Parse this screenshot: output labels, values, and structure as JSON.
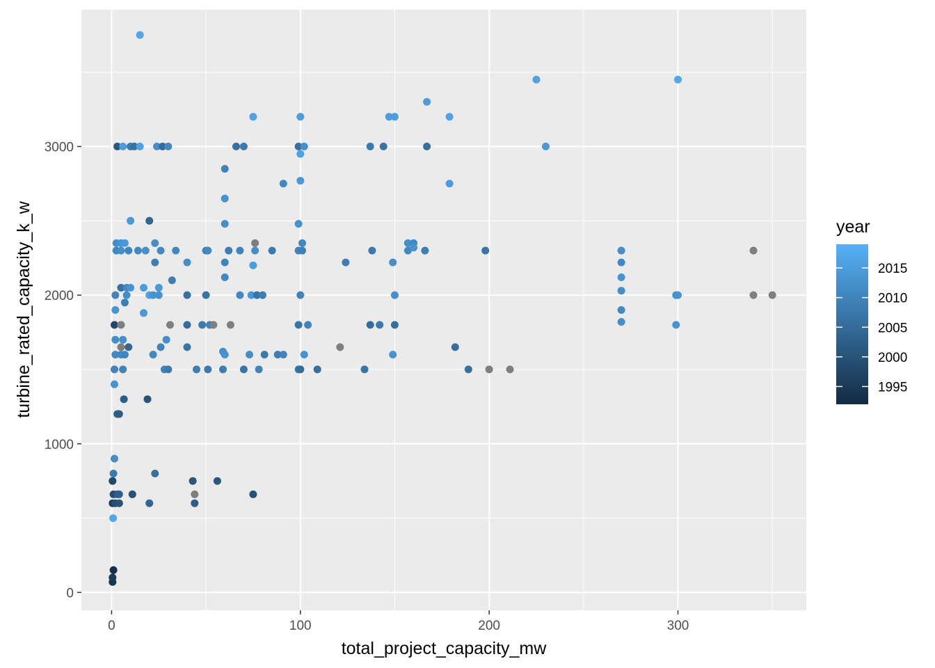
{
  "chart_data": {
    "type": "scatter",
    "xlabel": "total_project_capacity_mw",
    "ylabel": "turbine_rated_capacity_k_w",
    "xlim": [
      -16,
      368
    ],
    "ylim": [
      -120,
      3920
    ],
    "x_ticks": [
      0,
      100,
      200,
      300
    ],
    "y_ticks": [
      0,
      1000,
      2000,
      3000
    ],
    "x_tick_labels": [
      "0",
      "100",
      "200",
      "300"
    ],
    "y_tick_labels": [
      "0",
      "1000",
      "2000",
      "3000"
    ],
    "grid": true,
    "legend": {
      "title": "year",
      "position": "right",
      "type": "colorbar",
      "range": [
        1992,
        2019
      ],
      "breaks": [
        1995,
        2000,
        2005,
        2010,
        2015
      ],
      "break_labels": [
        "1995",
        "2000",
        "2005",
        "2010",
        "2015"
      ],
      "low_color": "#132B43",
      "high_color": "#56B1F7",
      "na_color": "#7F7F7F"
    },
    "colors": {
      "panel_background": "#EBEBEB",
      "grid": "#FFFFFF",
      "na_points": "#7F7F7F"
    },
    "points": [
      {
        "x": 0.5,
        "y": 70,
        "year": 1994
      },
      {
        "x": 0.5,
        "y": 100,
        "year": 1995
      },
      {
        "x": 1,
        "y": 150,
        "year": 1993
      },
      {
        "x": 0.8,
        "y": 500,
        "year": 2017
      },
      {
        "x": 0.5,
        "y": 600,
        "year": 1996
      },
      {
        "x": 1,
        "y": 660,
        "year": 1999
      },
      {
        "x": 0.5,
        "y": 750,
        "year": 1998
      },
      {
        "x": 1,
        "y": 800,
        "year": 2008
      },
      {
        "x": 1.5,
        "y": 900,
        "year": 2012
      },
      {
        "x": 2,
        "y": 600,
        "year": 1999
      },
      {
        "x": 3,
        "y": 660,
        "year": 2001
      },
      {
        "x": 1.5,
        "y": 1400,
        "year": 2013
      },
      {
        "x": 1.5,
        "y": 1500,
        "year": 2010
      },
      {
        "x": 2,
        "y": 1600,
        "year": 2011
      },
      {
        "x": 2,
        "y": 1700,
        "year": 2012
      },
      {
        "x": 1.5,
        "y": 1800,
        "year": 1998
      },
      {
        "x": 2,
        "y": 1900,
        "year": 2013
      },
      {
        "x": 2,
        "y": 2000,
        "year": 2010
      },
      {
        "x": 2.5,
        "y": 2300,
        "year": 2011
      },
      {
        "x": 2.5,
        "y": 2350,
        "year": 2012
      },
      {
        "x": 3,
        "y": 1200,
        "year": 2003
      },
      {
        "x": 4,
        "y": 1200,
        "year": 2002
      },
      {
        "x": 4,
        "y": 600,
        "year": 2000
      },
      {
        "x": 4,
        "y": 660,
        "year": 2003
      },
      {
        "x": 3,
        "y": 3000,
        "year": 2001
      },
      {
        "x": 5,
        "y": 2050,
        "year": 2006
      },
      {
        "x": 5,
        "y": 1650,
        "year": null
      },
      {
        "x": 5,
        "y": 1800,
        "year": null
      },
      {
        "x": 5,
        "y": 2300,
        "year": 2012
      },
      {
        "x": 5,
        "y": 2350,
        "year": 2013
      },
      {
        "x": 5,
        "y": 1600,
        "year": 2011
      },
      {
        "x": 6,
        "y": 1500,
        "year": 2010
      },
      {
        "x": 6,
        "y": 1700,
        "year": 2012
      },
      {
        "x": 6.5,
        "y": 1300,
        "year": 2002
      },
      {
        "x": 6,
        "y": 3000,
        "year": 2015
      },
      {
        "x": 7,
        "y": 2350,
        "year": 2014
      },
      {
        "x": 7,
        "y": 1600,
        "year": 2010
      },
      {
        "x": 7,
        "y": 1950,
        "year": 2009
      },
      {
        "x": 8,
        "y": 2000,
        "year": 2012
      },
      {
        "x": 8,
        "y": 2050,
        "year": 2011
      },
      {
        "x": 9,
        "y": 1650,
        "year": 2004
      },
      {
        "x": 9,
        "y": 2300,
        "year": 2010
      },
      {
        "x": 10,
        "y": 3000,
        "year": 2008
      },
      {
        "x": 10,
        "y": 2500,
        "year": 2014
      },
      {
        "x": 10,
        "y": 2050,
        "year": 2013
      },
      {
        "x": 11,
        "y": 660,
        "year": null
      },
      {
        "x": 11,
        "y": 660,
        "year": 2000
      },
      {
        "x": 12,
        "y": 3000,
        "year": 2006
      },
      {
        "x": 14,
        "y": 2300,
        "year": 2011
      },
      {
        "x": 15,
        "y": 3000,
        "year": 2016
      },
      {
        "x": 15,
        "y": 3750,
        "year": 2017
      },
      {
        "x": 17,
        "y": 2050,
        "year": 2015
      },
      {
        "x": 17,
        "y": 1880,
        "year": 2014
      },
      {
        "x": 18,
        "y": 2300,
        "year": 2012
      },
      {
        "x": 19,
        "y": 1300,
        "year": 2000
      },
      {
        "x": 20,
        "y": 2500,
        "year": 2004
      },
      {
        "x": 20,
        "y": 600,
        "year": 2004
      },
      {
        "x": 20,
        "y": 2000,
        "year": 2016
      },
      {
        "x": 22,
        "y": 2000,
        "year": 2013
      },
      {
        "x": 22,
        "y": 1600,
        "year": 2011
      },
      {
        "x": 23,
        "y": 2220,
        "year": 2009
      },
      {
        "x": 23,
        "y": 2350,
        "year": 2012
      },
      {
        "x": 23,
        "y": 800,
        "year": 2006
      },
      {
        "x": 24,
        "y": 3000,
        "year": 2012
      },
      {
        "x": 25,
        "y": 2000,
        "year": 2013
      },
      {
        "x": 25,
        "y": 2050,
        "year": 2014
      },
      {
        "x": 26,
        "y": 2300,
        "year": 2011
      },
      {
        "x": 26,
        "y": 1650,
        "year": 2010
      },
      {
        "x": 27,
        "y": 3000,
        "year": 2005
      },
      {
        "x": 28,
        "y": 1500,
        "year": 2010
      },
      {
        "x": 29,
        "y": 1700,
        "year": 2012
      },
      {
        "x": 30,
        "y": 1500,
        "year": 2008
      },
      {
        "x": 30,
        "y": 3000,
        "year": 2011
      },
      {
        "x": 31,
        "y": 1800,
        "year": null
      },
      {
        "x": 32,
        "y": 2100,
        "year": 2009
      },
      {
        "x": 34,
        "y": 2300,
        "year": 2011
      },
      {
        "x": 40,
        "y": 2220,
        "year": 2012
      },
      {
        "x": 40,
        "y": 1800,
        "year": 2005
      },
      {
        "x": 40,
        "y": 2000,
        "year": 2006
      },
      {
        "x": 40,
        "y": 1650,
        "year": 2007
      },
      {
        "x": 43,
        "y": 750,
        "year": 2001
      },
      {
        "x": 44,
        "y": 660,
        "year": null
      },
      {
        "x": 44,
        "y": 600,
        "year": 2002
      },
      {
        "x": 45,
        "y": 1500,
        "year": 2009
      },
      {
        "x": 48,
        "y": 1800,
        "year": 2008
      },
      {
        "x": 50,
        "y": 2000,
        "year": 2007
      },
      {
        "x": 50,
        "y": 2300,
        "year": 2009
      },
      {
        "x": 51,
        "y": 2300,
        "year": 2011
      },
      {
        "x": 51,
        "y": 1500,
        "year": 2008
      },
      {
        "x": 52,
        "y": 1800,
        "year": 2010
      },
      {
        "x": 54,
        "y": 1800,
        "year": null
      },
      {
        "x": 56,
        "y": 750,
        "year": 2001
      },
      {
        "x": 59,
        "y": 1620,
        "year": 2012
      },
      {
        "x": 59,
        "y": 1500,
        "year": 2009
      },
      {
        "x": 60,
        "y": 2850,
        "year": 2010
      },
      {
        "x": 60,
        "y": 2650,
        "year": 2013
      },
      {
        "x": 60,
        "y": 2480,
        "year": 2012
      },
      {
        "x": 60,
        "y": 2220,
        "year": 2010
      },
      {
        "x": 60,
        "y": 2120,
        "year": 2011
      },
      {
        "x": 60,
        "y": 1600,
        "year": 2013
      },
      {
        "x": 62,
        "y": 2300,
        "year": 2009
      },
      {
        "x": 63,
        "y": 1800,
        "year": null
      },
      {
        "x": 66,
        "y": 3000,
        "year": 2006
      },
      {
        "x": 68,
        "y": 2300,
        "year": 2010
      },
      {
        "x": 68,
        "y": 2000,
        "year": 2011
      },
      {
        "x": 70,
        "y": 3000,
        "year": 2008
      },
      {
        "x": 70,
        "y": 1500,
        "year": 2007
      },
      {
        "x": 73,
        "y": 1600,
        "year": 2012
      },
      {
        "x": 74,
        "y": 2000,
        "year": 2014
      },
      {
        "x": 75,
        "y": 2200,
        "year": 2015
      },
      {
        "x": 75,
        "y": 3200,
        "year": 2016
      },
      {
        "x": 75,
        "y": 660,
        "year": 2000
      },
      {
        "x": 76,
        "y": 2350,
        "year": null
      },
      {
        "x": 76,
        "y": 2300,
        "year": 2012
      },
      {
        "x": 77,
        "y": 2000,
        "year": 2007
      },
      {
        "x": 78,
        "y": 1500,
        "year": 2010
      },
      {
        "x": 80,
        "y": 2000,
        "year": 2009
      },
      {
        "x": 81,
        "y": 1600,
        "year": 2008
      },
      {
        "x": 85,
        "y": 2300,
        "year": 2008
      },
      {
        "x": 88,
        "y": 1600,
        "year": 2009
      },
      {
        "x": 91,
        "y": 1600,
        "year": 2010
      },
      {
        "x": 91,
        "y": 2750,
        "year": 2011
      },
      {
        "x": 99,
        "y": 3000,
        "year": 2006
      },
      {
        "x": 99,
        "y": 2300,
        "year": 2010
      },
      {
        "x": 99,
        "y": 2480,
        "year": 2013
      },
      {
        "x": 99,
        "y": 1800,
        "year": 2007
      },
      {
        "x": 99,
        "y": 1500,
        "year": 2008
      },
      {
        "x": 100,
        "y": 3200,
        "year": 2015
      },
      {
        "x": 100,
        "y": 2950,
        "year": 2016
      },
      {
        "x": 100,
        "y": 2770,
        "year": 2014
      },
      {
        "x": 100,
        "y": 2000,
        "year": 2010
      },
      {
        "x": 100,
        "y": 1500,
        "year": 2005
      },
      {
        "x": 101,
        "y": 2350,
        "year": 2011
      },
      {
        "x": 101,
        "y": 2300,
        "year": 2009
      },
      {
        "x": 102,
        "y": 3000,
        "year": 2012
      },
      {
        "x": 102,
        "y": 1600,
        "year": 2013
      },
      {
        "x": 104,
        "y": 1800,
        "year": 2010
      },
      {
        "x": 109,
        "y": 1500,
        "year": 2006
      },
      {
        "x": 121,
        "y": 1650,
        "year": null
      },
      {
        "x": 124,
        "y": 2220,
        "year": 2009
      },
      {
        "x": 134,
        "y": 1500,
        "year": 2007
      },
      {
        "x": 137,
        "y": 1800,
        "year": 2005
      },
      {
        "x": 137,
        "y": 3000,
        "year": 2008
      },
      {
        "x": 138,
        "y": 2300,
        "year": 2008
      },
      {
        "x": 142,
        "y": 1800,
        "year": 2008
      },
      {
        "x": 144,
        "y": 3000,
        "year": 2007
      },
      {
        "x": 147,
        "y": 3200,
        "year": 2015
      },
      {
        "x": 149,
        "y": 1600,
        "year": 2013
      },
      {
        "x": 149,
        "y": 2220,
        "year": 2012
      },
      {
        "x": 150,
        "y": 1800,
        "year": 2006
      },
      {
        "x": 150,
        "y": 2000,
        "year": 2012
      },
      {
        "x": 150,
        "y": 3200,
        "year": 2015
      },
      {
        "x": 157,
        "y": 2350,
        "year": 2012
      },
      {
        "x": 157,
        "y": 2300,
        "year": 2011
      },
      {
        "x": 160,
        "y": 2350,
        "year": 2011
      },
      {
        "x": 160,
        "y": 2320,
        "year": 2013
      },
      {
        "x": 166,
        "y": 2300,
        "year": 2009
      },
      {
        "x": 167,
        "y": 3000,
        "year": 2006
      },
      {
        "x": 167,
        "y": 3300,
        "year": 2015
      },
      {
        "x": 179,
        "y": 2750,
        "year": 2015
      },
      {
        "x": 179,
        "y": 3200,
        "year": 2016
      },
      {
        "x": 182,
        "y": 1650,
        "year": 2006
      },
      {
        "x": 189,
        "y": 1500,
        "year": 2006
      },
      {
        "x": 198,
        "y": 2300,
        "year": 2007
      },
      {
        "x": 200,
        "y": 1500,
        "year": null
      },
      {
        "x": 211,
        "y": 1500,
        "year": null
      },
      {
        "x": 225,
        "y": 3450,
        "year": 2016
      },
      {
        "x": 230,
        "y": 3000,
        "year": 2014
      },
      {
        "x": 270,
        "y": 2300,
        "year": 2012
      },
      {
        "x": 270,
        "y": 2220,
        "year": 2011
      },
      {
        "x": 270,
        "y": 2120,
        "year": 2013
      },
      {
        "x": 270,
        "y": 2030,
        "year": 2012
      },
      {
        "x": 270,
        "y": 1900,
        "year": 2011
      },
      {
        "x": 270,
        "y": 1820,
        "year": 2012
      },
      {
        "x": 299,
        "y": 2000,
        "year": 2012
      },
      {
        "x": 300,
        "y": 2000,
        "year": 2013
      },
      {
        "x": 299,
        "y": 1800,
        "year": 2013
      },
      {
        "x": 300,
        "y": 3450,
        "year": 2017
      },
      {
        "x": 340,
        "y": 2300,
        "year": null
      },
      {
        "x": 340,
        "y": 2000,
        "year": null
      },
      {
        "x": 350,
        "y": 2000,
        "year": null
      }
    ]
  }
}
